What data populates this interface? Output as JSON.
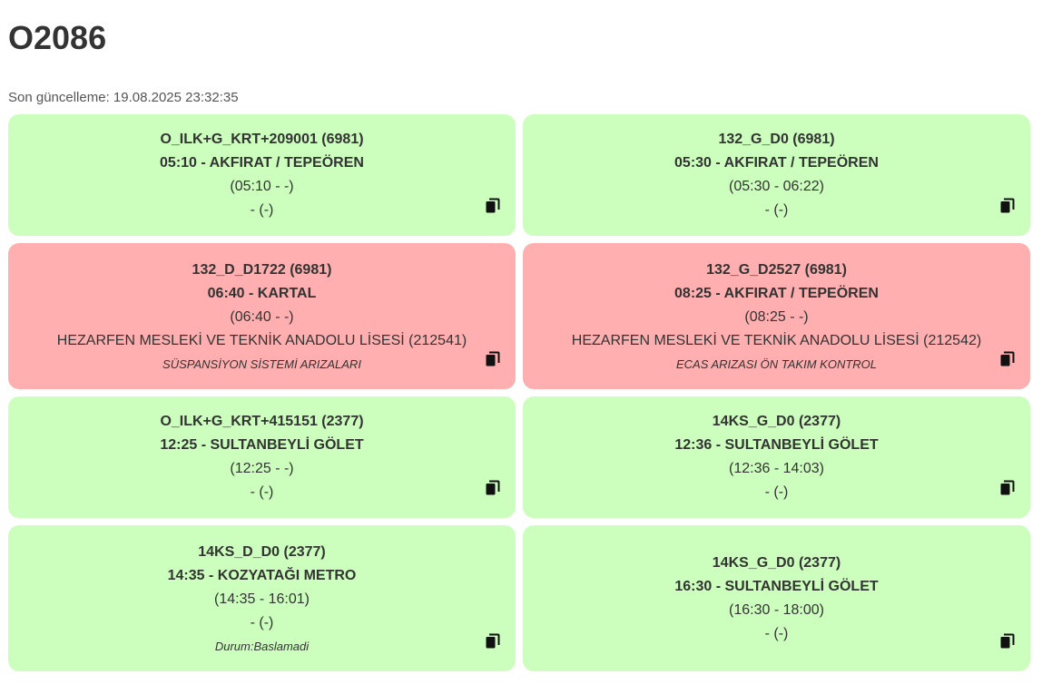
{
  "page": {
    "title": "O2086",
    "last_updated": "Son güncelleme: 19.08.2025 23:32:35"
  },
  "colors": {
    "ok": "#ccffbd",
    "bad": "#ffafaf"
  },
  "cards": [
    {
      "status": "ok",
      "route": "O_ILK+G_KRT+209001 (6981)",
      "departure": "05:10 - AKFIRAT / TEPEÖREN",
      "times": "(05:10 - -)",
      "driver": "- (-)",
      "note": "",
      "icon": "copy-icon"
    },
    {
      "status": "ok",
      "route": "132_G_D0 (6981)",
      "departure": "05:30 - AKFIRAT / TEPEÖREN",
      "times": "(05:30 - 06:22)",
      "driver": "- (-)",
      "note": "",
      "icon": "copy-icon"
    },
    {
      "status": "bad",
      "route": "132_D_D1722 (6981)",
      "departure": "06:40 - KARTAL",
      "times": "(06:40 - -)",
      "driver": "HEZARFEN MESLEKİ VE TEKNİK ANADOLU LİSESİ (212541)",
      "note": "SÜSPANSİYON SİSTEMİ ARIZALARI",
      "icon": "copy-icon"
    },
    {
      "status": "bad",
      "route": "132_G_D2527 (6981)",
      "departure": "08:25 - AKFIRAT / TEPEÖREN",
      "times": "(08:25 - -)",
      "driver": "HEZARFEN MESLEKİ VE TEKNİK ANADOLU LİSESİ (212542)",
      "note": "ECAS ARIZASI ÖN TAKIM KONTROL",
      "icon": "copy-icon"
    },
    {
      "status": "ok",
      "route": "O_ILK+G_KRT+415151 (2377)",
      "departure": "12:25 - SULTANBEYLİ GÖLET",
      "times": "(12:25 - -)",
      "driver": "- (-)",
      "note": "",
      "icon": "copy-icon"
    },
    {
      "status": "ok",
      "route": "14KS_G_D0 (2377)",
      "departure": "12:36 - SULTANBEYLİ GÖLET",
      "times": "(12:36 - 14:03)",
      "driver": "- (-)",
      "note": "",
      "icon": "copy-icon"
    },
    {
      "status": "ok",
      "route": "14KS_D_D0 (2377)",
      "departure": "14:35 - KOZYATAĞI METRO",
      "times": "(14:35 - 16:01)",
      "driver": "- (-)",
      "note": "Durum:Baslamadi",
      "icon": "copy-icon"
    },
    {
      "status": "ok",
      "route": "14KS_G_D0 (2377)",
      "departure": "16:30 - SULTANBEYLİ GÖLET",
      "times": "(16:30 - 18:00)",
      "driver": "- (-)",
      "note": "",
      "icon": "copy-icon"
    }
  ]
}
